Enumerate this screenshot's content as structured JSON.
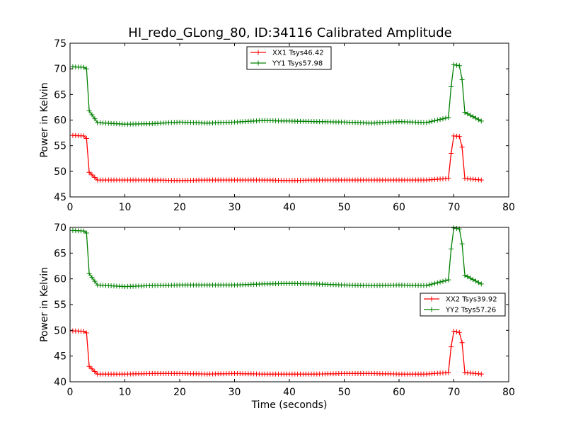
{
  "chart_data": [
    {
      "type": "line",
      "title": "HI_redo_GLong_80, ID:34116 Calibrated Amplitude",
      "xlabel": "",
      "ylabel": "Power in Kelvin",
      "xlim": [
        0,
        80
      ],
      "ylim": [
        45,
        75
      ],
      "xticks": [
        "0",
        "10",
        "20",
        "30",
        "40",
        "50",
        "60",
        "70",
        "80"
      ],
      "yticks": [
        "45",
        "50",
        "55",
        "60",
        "65",
        "70",
        "75"
      ],
      "grid": false,
      "legend_position": "top-center",
      "marker": "+",
      "series": [
        {
          "name": "XX1 Tsys46.42",
          "color": "#ff0000",
          "x": [
            0.5,
            2.5,
            3.0,
            3.5,
            5,
            10,
            15,
            20,
            25,
            30,
            35,
            40,
            45,
            50,
            55,
            60,
            65,
            69.0,
            69.5,
            70.0,
            71.0,
            71.5,
            72.0,
            75
          ],
          "y": [
            57.0,
            56.9,
            56.4,
            49.8,
            48.3,
            48.3,
            48.3,
            48.2,
            48.3,
            48.3,
            48.3,
            48.2,
            48.3,
            48.3,
            48.3,
            48.3,
            48.3,
            48.6,
            53.5,
            56.9,
            56.8,
            54.7,
            48.6,
            48.3
          ]
        },
        {
          "name": "YY1 Tsys57.98",
          "color": "#008000",
          "x": [
            0.5,
            2.5,
            3.0,
            3.5,
            5,
            10,
            15,
            20,
            25,
            30,
            35,
            40,
            45,
            50,
            55,
            60,
            65,
            69.0,
            69.5,
            70.0,
            71.0,
            71.5,
            72.0,
            75
          ],
          "y": [
            70.4,
            70.3,
            70.0,
            61.8,
            59.5,
            59.2,
            59.3,
            59.6,
            59.4,
            59.6,
            59.9,
            59.8,
            59.7,
            59.6,
            59.4,
            59.7,
            59.5,
            60.5,
            66.5,
            70.8,
            70.6,
            67.9,
            61.5,
            59.8
          ]
        }
      ]
    },
    {
      "type": "line",
      "title": "",
      "xlabel": "Time (seconds)",
      "ylabel": "Power in Kelvin",
      "xlim": [
        0,
        80
      ],
      "ylim": [
        40,
        70
      ],
      "xticks": [
        "0",
        "10",
        "20",
        "30",
        "40",
        "50",
        "60",
        "70",
        "80"
      ],
      "yticks": [
        "40",
        "45",
        "50",
        "55",
        "60",
        "65",
        "70"
      ],
      "grid": false,
      "legend_position": "center-right",
      "marker": "+",
      "series": [
        {
          "name": "XX2 Tsys39.92",
          "color": "#ff0000",
          "x": [
            0.5,
            2.5,
            3.0,
            3.5,
            5,
            10,
            15,
            20,
            25,
            30,
            35,
            40,
            45,
            50,
            55,
            60,
            65,
            69.0,
            69.5,
            70.0,
            71.0,
            71.5,
            72.0,
            75
          ],
          "y": [
            49.9,
            49.8,
            49.5,
            43.0,
            41.5,
            41.5,
            41.6,
            41.6,
            41.5,
            41.6,
            41.5,
            41.5,
            41.5,
            41.6,
            41.6,
            41.5,
            41.5,
            41.8,
            46.8,
            49.8,
            49.6,
            47.6,
            41.8,
            41.5
          ]
        },
        {
          "name": "YY2 Tsys57.26",
          "color": "#008000",
          "x": [
            0.5,
            2.5,
            3.0,
            3.5,
            5,
            10,
            15,
            20,
            25,
            30,
            35,
            40,
            45,
            50,
            55,
            60,
            65,
            69.0,
            69.5,
            70.0,
            71.0,
            71.5,
            72.0,
            75
          ],
          "y": [
            69.4,
            69.3,
            68.9,
            61.0,
            58.8,
            58.5,
            58.7,
            58.8,
            58.8,
            58.8,
            59.0,
            59.1,
            59.0,
            58.8,
            58.7,
            58.8,
            58.7,
            59.8,
            65.8,
            69.9,
            69.7,
            66.8,
            60.7,
            59.0
          ]
        }
      ]
    }
  ]
}
